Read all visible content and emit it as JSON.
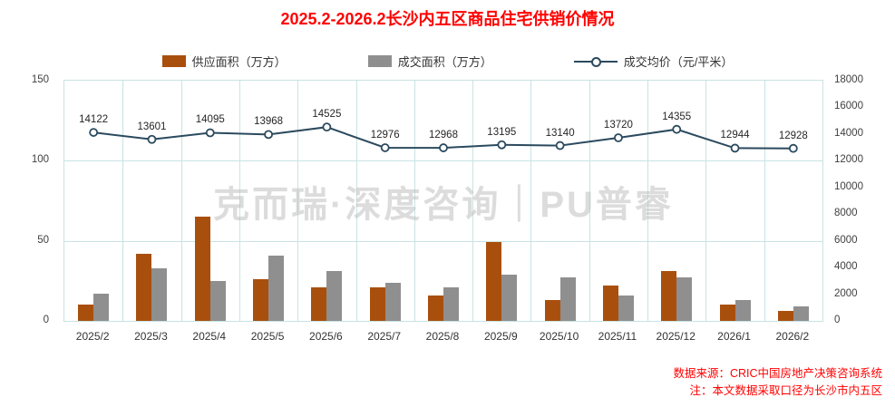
{
  "title": "2025.2-2026.2长沙内五区商品住宅供销价情况",
  "legend": [
    {
      "label": "供应面积（万方）",
      "type": "bar",
      "color": "#A94F0D"
    },
    {
      "label": "成交面积（万方）",
      "type": "bar",
      "color": "#8F8F8F"
    },
    {
      "label": "成交均价（元/平米）",
      "type": "line",
      "color": "#2B4A5E"
    }
  ],
  "watermark": "克而瑞·深度咨询｜PU普睿",
  "footer": {
    "source": "数据来源：CRIC中国房地产决策咨询系统",
    "note": "注：本文数据采取口径为长沙市内五区"
  },
  "chart_data": {
    "type": "combo",
    "categories": [
      "2025/2",
      "2025/3",
      "2025/4",
      "2025/5",
      "2025/6",
      "2025/7",
      "2025/8",
      "2025/9",
      "2025/10",
      "2025/11",
      "2025/12",
      "2026/1",
      "2026/2"
    ],
    "series": [
      {
        "name": "供应面积（万方）",
        "type": "bar",
        "axis": "left",
        "color": "#A94F0D",
        "values": [
          10,
          42,
          65,
          26,
          21,
          21,
          16,
          49,
          13,
          22,
          31,
          10,
          6
        ]
      },
      {
        "name": "成交面积（万方）",
        "type": "bar",
        "axis": "left",
        "color": "#8F8F8F",
        "values": [
          17,
          33,
          25,
          41,
          31,
          24,
          21,
          29,
          27,
          16,
          27,
          13,
          9
        ]
      },
      {
        "name": "成交均价（元/平米）",
        "type": "line",
        "axis": "right",
        "color": "#2B4A5E",
        "values": [
          14122,
          13601,
          14095,
          13968,
          14525,
          12976,
          12968,
          13195,
          13140,
          13720,
          14355,
          12944,
          12928
        ]
      }
    ],
    "left_axis": {
      "min": 0,
      "max": 150,
      "ticks": [
        0,
        50,
        100,
        150
      ]
    },
    "right_axis": {
      "min": 0,
      "max": 18000,
      "ticks": [
        0,
        2000,
        4000,
        6000,
        8000,
        10000,
        12000,
        14000,
        16000,
        18000
      ]
    },
    "grid": true,
    "legend_position": "top",
    "point_labels_visible": true
  }
}
